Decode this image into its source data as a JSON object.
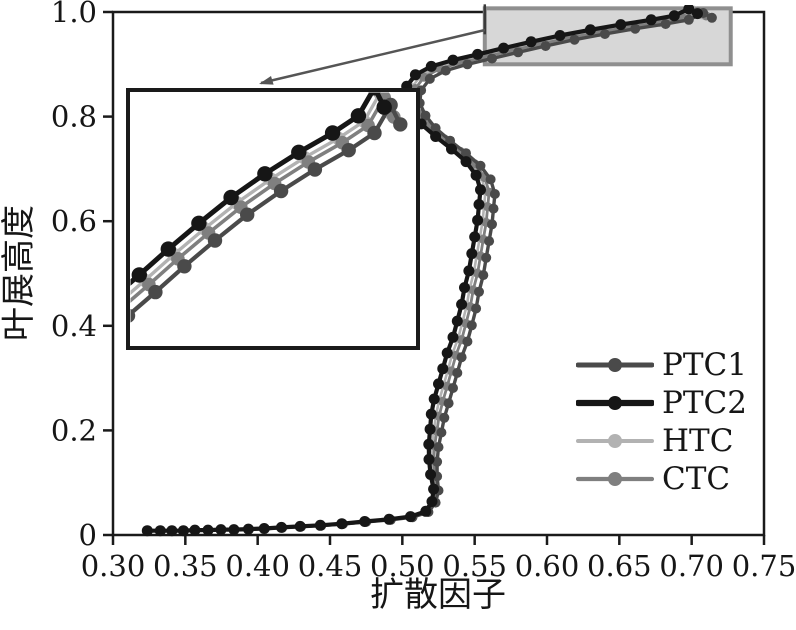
{
  "chart_data": {
    "type": "line",
    "title": "",
    "xlabel": "扩散因子",
    "ylabel": "叶展高度",
    "xlim": [
      0.3,
      0.75
    ],
    "ylim": [
      0,
      1.0
    ],
    "grid": false,
    "legend_position": "inside lower-right",
    "x_tick_values": [
      0.3,
      0.35,
      0.4,
      0.45,
      0.5,
      0.55,
      0.6,
      0.65,
      0.7,
      0.75
    ],
    "x_tick_labels": [
      "0.30",
      "0.35",
      "0.40",
      "0.45",
      "0.50",
      "0.55",
      "0.60",
      "0.65",
      "0.70",
      "0.75"
    ],
    "y_tick_values": [
      0,
      0.2,
      0.4,
      0.6,
      0.8,
      1.0
    ],
    "y_tick_labels": [
      "0",
      "0.2",
      "0.4",
      "0.6",
      "0.8",
      "1.0"
    ],
    "series": [
      {
        "name": "PTC1",
        "color": "#4a4a4a",
        "line_width": 3.4,
        "marker": "circle",
        "marker_radius": 5.0,
        "offset": [
          0,
          0
        ]
      },
      {
        "name": "PTC2",
        "color": "#161616",
        "line_width": 4.2,
        "marker": "circle",
        "marker_radius": 5.5,
        "offset": [
          -0.01,
          0.008
        ]
      },
      {
        "name": "HTC",
        "color": "#b2b2b2",
        "line_width": 2.6,
        "marker": "circle",
        "marker_radius": 4.6,
        "offset": [
          -0.0065,
          0.0055
        ]
      },
      {
        "name": "CTC",
        "color": "#7f7f7f",
        "line_width": 2.8,
        "marker": "circle",
        "marker_radius": 4.6,
        "offset": [
          -0.004,
          0.0035
        ]
      }
    ],
    "base_points": [
      [
        0.324,
        0.008
      ],
      [
        0.333,
        0.008
      ],
      [
        0.341,
        0.008
      ],
      [
        0.349,
        0.008
      ],
      [
        0.357,
        0.009
      ],
      [
        0.366,
        0.009
      ],
      [
        0.375,
        0.01
      ],
      [
        0.384,
        0.01
      ],
      [
        0.394,
        0.011
      ],
      [
        0.405,
        0.012
      ],
      [
        0.417,
        0.014
      ],
      [
        0.43,
        0.016
      ],
      [
        0.444,
        0.018
      ],
      [
        0.459,
        0.021
      ],
      [
        0.475,
        0.025
      ],
      [
        0.492,
        0.029
      ],
      [
        0.507,
        0.034
      ],
      [
        0.518,
        0.044
      ],
      [
        0.523,
        0.062
      ],
      [
        0.525,
        0.085
      ],
      [
        0.524,
        0.112
      ],
      [
        0.524,
        0.14
      ],
      [
        0.525,
        0.168
      ],
      [
        0.527,
        0.196
      ],
      [
        0.529,
        0.224
      ],
      [
        0.532,
        0.252
      ],
      [
        0.535,
        0.281
      ],
      [
        0.538,
        0.31
      ],
      [
        0.541,
        0.34
      ],
      [
        0.545,
        0.37
      ],
      [
        0.548,
        0.401
      ],
      [
        0.551,
        0.433
      ],
      [
        0.553,
        0.465
      ],
      [
        0.556,
        0.497
      ],
      [
        0.558,
        0.53
      ],
      [
        0.56,
        0.562
      ],
      [
        0.562,
        0.594
      ],
      [
        0.563,
        0.624
      ],
      [
        0.564,
        0.652
      ],
      [
        0.561,
        0.68
      ],
      [
        0.554,
        0.706
      ],
      [
        0.544,
        0.73
      ],
      [
        0.533,
        0.754
      ],
      [
        0.523,
        0.778
      ],
      [
        0.516,
        0.802
      ],
      [
        0.512,
        0.826
      ],
      [
        0.513,
        0.85
      ],
      [
        0.519,
        0.872
      ],
      [
        0.53,
        0.888
      ],
      [
        0.545,
        0.9
      ],
      [
        0.562,
        0.911
      ],
      [
        0.58,
        0.923
      ],
      [
        0.599,
        0.935
      ],
      [
        0.619,
        0.947
      ],
      [
        0.64,
        0.958
      ],
      [
        0.661,
        0.968
      ],
      [
        0.682,
        0.977
      ],
      [
        0.698,
        0.985
      ],
      [
        0.708,
        0.998
      ],
      [
        0.714,
        0.989
      ]
    ],
    "offset_fade_below_h": 0.25,
    "highlight_window": {
      "df": [
        0.557,
        0.727
      ],
      "h": [
        0.9,
        1.007
      ]
    },
    "inset": {
      "description": "magnified view of highlighted top-right region",
      "window": {
        "df": [
          0.545,
          0.725
        ],
        "h": [
          0.885,
          1.005
        ]
      }
    }
  },
  "colors": {
    "axis": "#1a1a1a",
    "highlight_fill": "#d7d7d7",
    "highlight_border": "#8f8f8f",
    "connector": "#555555",
    "inset_border": "#1a1a1a"
  }
}
